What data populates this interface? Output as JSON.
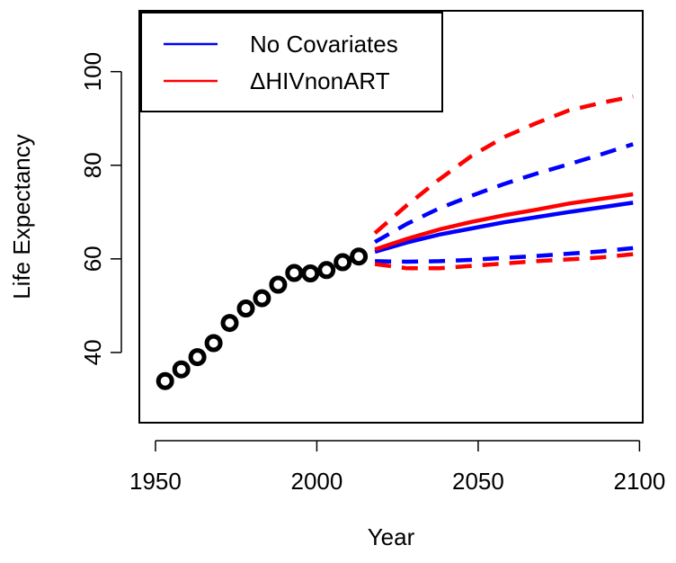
{
  "chart_data": {
    "type": "line",
    "title": "",
    "xlabel": "Year",
    "ylabel": "Life Expectancy",
    "xlim": [
      1945,
      2101
    ],
    "ylim": [
      25,
      113
    ],
    "xticks": [
      "1950",
      "2000",
      "2050",
      "2100"
    ],
    "yticks": [
      "40",
      "60",
      "80",
      "100"
    ],
    "grid": false,
    "legend_position": "top-left",
    "observed": {
      "x": [
        1953,
        1958,
        1963,
        1968,
        1973,
        1978,
        1983,
        1988,
        1993,
        1998,
        2003,
        2008,
        2013
      ],
      "y": [
        33.9,
        36.4,
        39.0,
        42.0,
        46.3,
        49.4,
        51.6,
        54.5,
        57.0,
        56.9,
        57.6,
        59.3,
        60.5
      ],
      "color": "#000000"
    },
    "series": [
      {
        "name": "No Covariates",
        "color": "#0000FF",
        "x": [
          2018,
          2028,
          2038,
          2048,
          2058,
          2068,
          2078,
          2088,
          2098
        ],
        "median": [
          61.5,
          63.5,
          65.2,
          66.5,
          67.8,
          68.9,
          70.0,
          71.0,
          72.0
        ],
        "upper": [
          63.6,
          67.5,
          70.8,
          73.5,
          76.0,
          78.2,
          80.2,
          82.3,
          84.5
        ],
        "lower": [
          59.5,
          59.4,
          59.5,
          59.8,
          60.2,
          60.6,
          61.1,
          61.6,
          62.3
        ]
      },
      {
        "name": "ΔHIVnonART",
        "color": "#FF0000",
        "x": [
          2018,
          2028,
          2038,
          2048,
          2058,
          2068,
          2078,
          2088,
          2098
        ],
        "median": [
          62.0,
          64.3,
          66.3,
          67.9,
          69.3,
          70.5,
          71.8,
          72.8,
          73.8
        ],
        "upper": [
          65.5,
          71.5,
          77.0,
          82.0,
          86.0,
          89.0,
          91.7,
          93.3,
          94.7
        ],
        "lower": [
          58.9,
          58.0,
          58.0,
          58.5,
          59.0,
          59.5,
          59.9,
          60.3,
          61.0
        ]
      }
    ]
  }
}
